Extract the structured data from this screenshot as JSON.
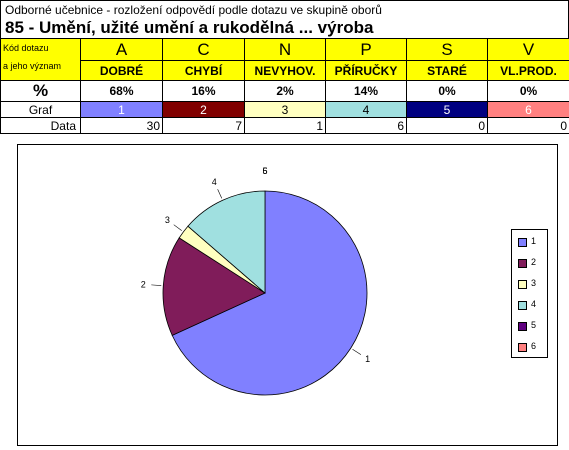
{
  "header": {
    "subtitle": "Odborné učebnice - rozložení odpovědí podle dotazu ve skupině oborů",
    "title": "85 - Umění, užité umění a rukodělná ... výroba"
  },
  "table": {
    "kod_label_line1": "Kód dotazu",
    "kod_label_line2": "a jeho význam",
    "pct_label": "%",
    "graf_label": "Graf",
    "data_label": "Data",
    "columns": [
      {
        "letter": "A",
        "meaning": "DOBRÉ",
        "pct": "68%",
        "graf": "1",
        "data": "30",
        "color": "#8080ff"
      },
      {
        "letter": "C",
        "meaning": "CHYBÍ",
        "pct": "16%",
        "graf": "2",
        "data": "7",
        "color": "#800000"
      },
      {
        "letter": "N",
        "meaning": "NEVYHOV.",
        "pct": "2%",
        "graf": "3",
        "data": "1",
        "color": "#ffffc0"
      },
      {
        "letter": "P",
        "meaning": "PŘÍRUČKY",
        "pct": "14%",
        "graf": "4",
        "data": "6",
        "color": "#a0e0e0"
      },
      {
        "letter": "S",
        "meaning": "STARÉ",
        "pct": "0%",
        "graf": "5",
        "data": "0",
        "color": "#000080"
      },
      {
        "letter": "V",
        "meaning": "VL.PROD.",
        "pct": "0%",
        "graf": "6",
        "data": "0",
        "color": "#ff8080"
      }
    ]
  },
  "chart_data": {
    "type": "pie",
    "categories": [
      "1",
      "2",
      "3",
      "4",
      "5",
      "6"
    ],
    "values": [
      30,
      7,
      1,
      6,
      0,
      0
    ],
    "colors": [
      "#8080ff",
      "#801c5a",
      "#ffffc0",
      "#a0e0e0",
      "#600080",
      "#ff8080"
    ],
    "legend": [
      "1",
      "2",
      "3",
      "4",
      "5",
      "6"
    ],
    "legend_position": "right",
    "start": "top",
    "direction": "clockwise"
  }
}
